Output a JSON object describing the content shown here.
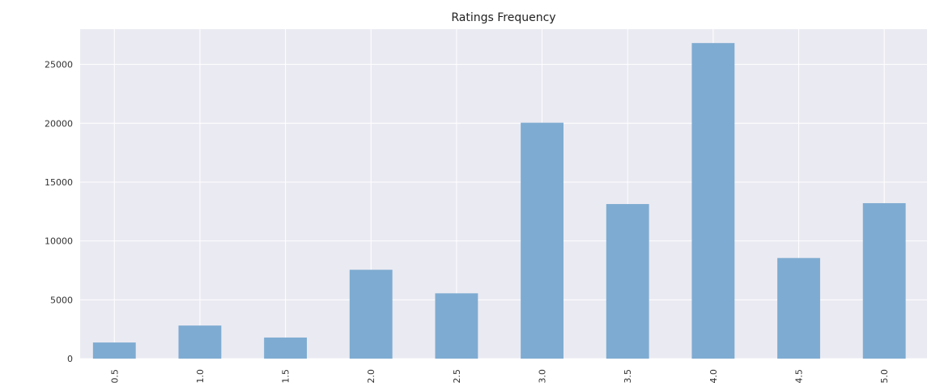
{
  "chart_data": {
    "type": "bar",
    "title": "Ratings Frequency",
    "xlabel": "",
    "ylabel": "",
    "categories": [
      "0.5",
      "1.0",
      "1.5",
      "2.0",
      "2.5",
      "3.0",
      "3.5",
      "4.0",
      "4.5",
      "5.0"
    ],
    "x": [
      0.5,
      1.0,
      1.5,
      2.0,
      2.5,
      3.0,
      3.5,
      4.0,
      4.5,
      5.0
    ],
    "values": [
      1370,
      2811,
      1791,
      7551,
      5550,
      20047,
      13136,
      26818,
      8551,
      13211
    ],
    "xlim": [
      0.3,
      5.25
    ],
    "ylim": [
      0,
      28000
    ],
    "yticks": [
      0,
      5000,
      10000,
      15000,
      20000,
      25000
    ],
    "grid": true,
    "legend": false,
    "bar_color": "#7eabd1",
    "background_color": "#eaeaf2",
    "grid_color": "#ffffff"
  }
}
